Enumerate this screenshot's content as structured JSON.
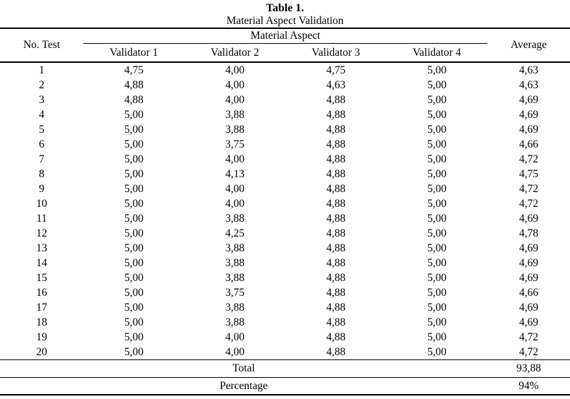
{
  "caption": {
    "title": "Table 1.",
    "subtitle": "Material Aspect Validation"
  },
  "table": {
    "col_no_test": "No. Test",
    "group_header": "Material Aspect",
    "validator_headers": [
      "Validator 1",
      "Validator 2",
      "Validator 3",
      "Validator 4"
    ],
    "col_average": "Average",
    "rows": [
      [
        "1",
        "4,75",
        "4,00",
        "4,75",
        "5,00",
        "4,63"
      ],
      [
        "2",
        "4,88",
        "4,00",
        "4,63",
        "5,00",
        "4,63"
      ],
      [
        "3",
        "4,88",
        "4,00",
        "4,88",
        "5,00",
        "4,69"
      ],
      [
        "4",
        "5,00",
        "3,88",
        "4,88",
        "5,00",
        "4,69"
      ],
      [
        "5",
        "5,00",
        "3,88",
        "4,88",
        "5,00",
        "4,69"
      ],
      [
        "6",
        "5,00",
        "3,75",
        "4,88",
        "5,00",
        "4,66"
      ],
      [
        "7",
        "5,00",
        "4,00",
        "4,88",
        "5,00",
        "4,72"
      ],
      [
        "8",
        "5,00",
        "4,13",
        "4,88",
        "5,00",
        "4,75"
      ],
      [
        "9",
        "5,00",
        "4,00",
        "4,88",
        "5,00",
        "4,72"
      ],
      [
        "10",
        "5,00",
        "4,00",
        "4,88",
        "5,00",
        "4,72"
      ],
      [
        "11",
        "5,00",
        "3,88",
        "4,88",
        "5,00",
        "4,69"
      ],
      [
        "12",
        "5,00",
        "4,25",
        "4,88",
        "5,00",
        "4,78"
      ],
      [
        "13",
        "5,00",
        "3,88",
        "4,88",
        "5,00",
        "4,69"
      ],
      [
        "14",
        "5,00",
        "3,88",
        "4,88",
        "5,00",
        "4,69"
      ],
      [
        "15",
        "5,00",
        "3,88",
        "4,88",
        "5,00",
        "4,69"
      ],
      [
        "16",
        "5,00",
        "3,75",
        "4,88",
        "5,00",
        "4,66"
      ],
      [
        "17",
        "5,00",
        "3,88",
        "4,88",
        "5,00",
        "4,69"
      ],
      [
        "18",
        "5,00",
        "3,88",
        "4,88",
        "5,00",
        "4,69"
      ],
      [
        "19",
        "5,00",
        "4,00",
        "4,88",
        "5,00",
        "4,72"
      ],
      [
        "20",
        "5,00",
        "4,00",
        "4,88",
        "5,00",
        "4,72"
      ]
    ],
    "total_label": "Total",
    "total_value": "93,88",
    "percentage_label": "Percentage",
    "percentage_value": "94%"
  },
  "colors": {
    "text": "#000000",
    "background": "#ffffff",
    "rule": "#000000"
  }
}
